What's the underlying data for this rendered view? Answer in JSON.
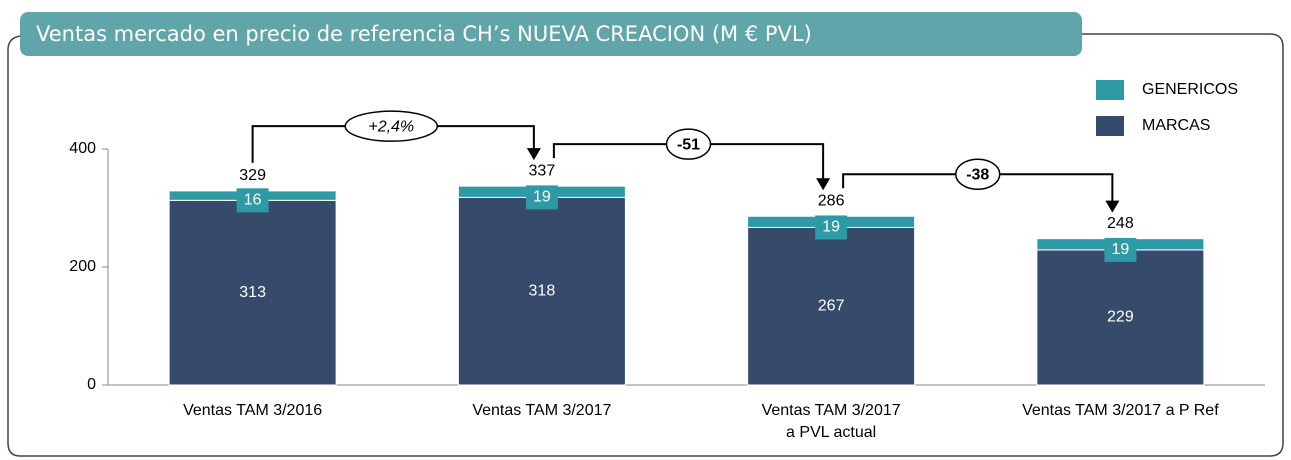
{
  "chart_data": {
    "type": "stacked_bar",
    "title": "Ventas mercado en  precio de referencia CH’s NUEVA CREACION (M € PVL)",
    "categories": [
      "Ventas TAM 3/2016",
      "Ventas TAM 3/2017",
      "Ventas TAM 3/2017\na PVL actual",
      "Ventas TAM 3/2017 a P Ref"
    ],
    "series": [
      {
        "name": "MARCAS",
        "color": "#364a6c",
        "values": [
          313,
          318,
          267,
          229
        ]
      },
      {
        "name": "GENERICOS",
        "color": "#2e9aa5",
        "values": [
          16,
          19,
          19,
          19
        ]
      }
    ],
    "totals": [
      329,
      337,
      286,
      248
    ],
    "annotations": [
      "+2,4%",
      "-51",
      "-38"
    ],
    "ylim": [
      0,
      400
    ],
    "yticks": [
      0,
      200,
      400
    ],
    "legend": "top-right"
  }
}
